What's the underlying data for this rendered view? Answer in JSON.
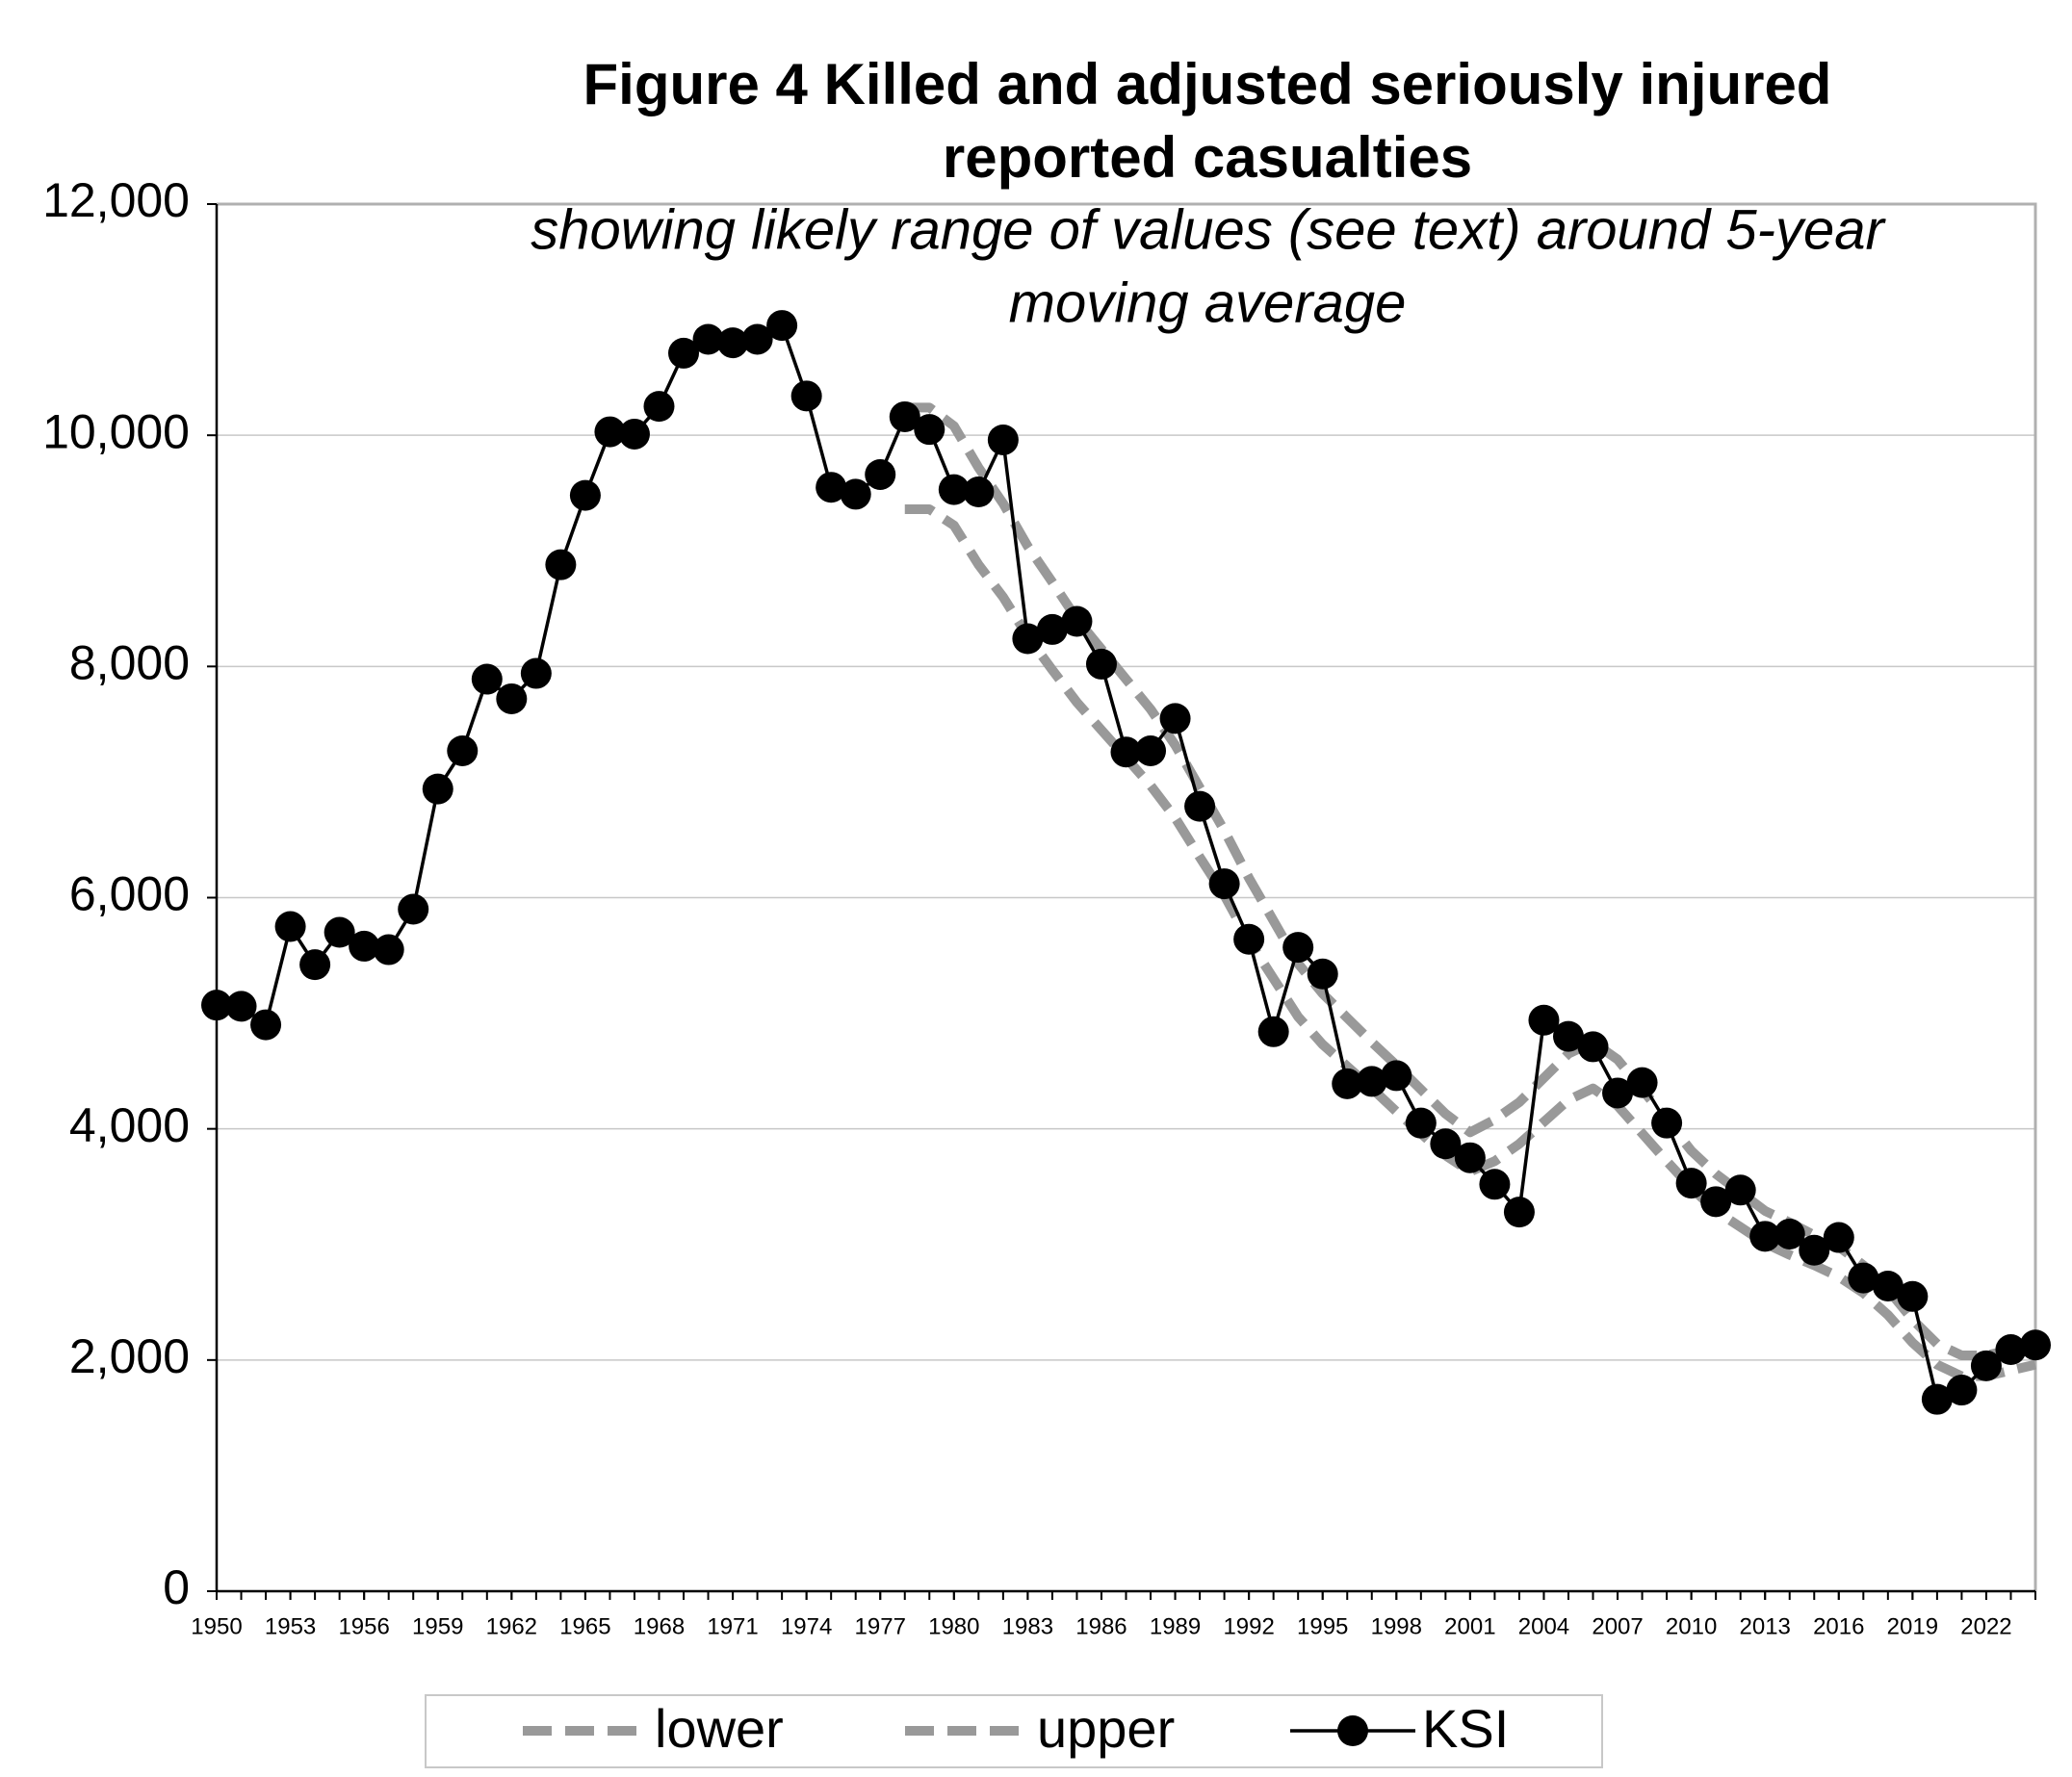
{
  "chart_data": {
    "type": "line",
    "title": [
      "Figure 4 Killed and adjusted seriously injured",
      "reported casualties"
    ],
    "subtitle": [
      "showing likely range of values (see text) around 5-year",
      "moving average"
    ],
    "x": [
      1950,
      1951,
      1952,
      1953,
      1954,
      1955,
      1956,
      1957,
      1958,
      1959,
      1960,
      1961,
      1962,
      1963,
      1964,
      1965,
      1966,
      1967,
      1968,
      1969,
      1970,
      1971,
      1972,
      1973,
      1974,
      1975,
      1976,
      1977,
      1978,
      1979,
      1980,
      1981,
      1982,
      1983,
      1984,
      1985,
      1986,
      1987,
      1988,
      1989,
      1990,
      1991,
      1992,
      1993,
      1994,
      1995,
      1996,
      1997,
      1998,
      1999,
      2000,
      2001,
      2002,
      2003,
      2004,
      2005,
      2006,
      2007,
      2008,
      2009,
      2010,
      2011,
      2012,
      2013,
      2014,
      2015,
      2016,
      2017,
      2018,
      2019,
      2020,
      2021,
      2022,
      2023,
      2024
    ],
    "xlim": [
      1950,
      2024
    ],
    "xticks": [
      1950,
      1953,
      1956,
      1959,
      1962,
      1965,
      1968,
      1971,
      1974,
      1977,
      1980,
      1983,
      1986,
      1989,
      1992,
      1995,
      1998,
      2001,
      2004,
      2007,
      2010,
      2013,
      2016,
      2019,
      2022
    ],
    "ylim": [
      0,
      12000
    ],
    "yticks": [
      0,
      {
        "value": 2000,
        "label": "2,000"
      },
      {
        "value": 4000,
        "label": "4,000"
      },
      {
        "value": 6000,
        "label": "6,000"
      },
      {
        "value": 8000,
        "label": "8,000"
      },
      {
        "value": 10000,
        "label": "10,000"
      },
      {
        "value": 12000,
        "label": "12,000"
      }
    ],
    "grid": true,
    "legend": "bottom",
    "series": [
      {
        "name": "lower",
        "color": "#999999",
        "dashed": true,
        "values": [
          null,
          null,
          null,
          null,
          null,
          null,
          null,
          null,
          null,
          null,
          null,
          null,
          null,
          null,
          null,
          null,
          null,
          null,
          null,
          null,
          null,
          null,
          null,
          null,
          null,
          null,
          null,
          null,
          9360,
          9360,
          9220,
          8880,
          8600,
          8260,
          7970,
          7690,
          7450,
          7210,
          6970,
          6690,
          6350,
          6020,
          5630,
          5300,
          4970,
          4730,
          4540,
          4350,
          4150,
          3960,
          3770,
          3630,
          3720,
          3870,
          4060,
          4250,
          4350,
          4200,
          3960,
          3720,
          3490,
          3290,
          3150,
          3010,
          2910,
          2820,
          2720,
          2580,
          2390,
          2150,
          1960,
          1860,
          1860,
          1910,
          1960
        ]
      },
      {
        "name": "upper",
        "color": "#999999",
        "dashed": true,
        "values": [
          null,
          null,
          null,
          null,
          null,
          null,
          null,
          null,
          null,
          null,
          null,
          null,
          null,
          null,
          null,
          null,
          null,
          null,
          null,
          null,
          null,
          null,
          null,
          null,
          null,
          null,
          null,
          null,
          10240,
          10240,
          10080,
          9720,
          9410,
          9040,
          8730,
          8410,
          8150,
          7890,
          7630,
          7320,
          6950,
          6580,
          6170,
          5800,
          5430,
          5170,
          4960,
          4750,
          4550,
          4340,
          4130,
          3970,
          4080,
          4230,
          4440,
          4650,
          4750,
          4600,
          4340,
          4080,
          3810,
          3610,
          3450,
          3290,
          3190,
          3080,
          2980,
          2820,
          2610,
          2350,
          2140,
          2040,
          2040,
          2090,
          2140
        ]
      },
      {
        "name": "KSI",
        "color": "#000000",
        "markers": true,
        "values": [
          5070,
          5060,
          4900,
          5750,
          5420,
          5700,
          5580,
          5550,
          5900,
          6940,
          7270,
          7890,
          7720,
          7940,
          8880,
          9480,
          10030,
          10010,
          10250,
          10710,
          10830,
          10800,
          10830,
          10950,
          10340,
          9550,
          9490,
          9660,
          10160,
          10050,
          9530,
          9510,
          9960,
          8240,
          8320,
          8390,
          8020,
          7260,
          7270,
          7550,
          6790,
          6120,
          5640,
          4840,
          5570,
          5340,
          4390,
          4410,
          4460,
          4050,
          3870,
          3750,
          3520,
          3280,
          4940,
          4800,
          4710,
          4310,
          4400,
          4050,
          3530,
          3370,
          3470,
          3070,
          3090,
          2950,
          3060,
          2710,
          2640,
          2550,
          1660,
          1740,
          1950,
          2090,
          2130
        ]
      }
    ]
  }
}
